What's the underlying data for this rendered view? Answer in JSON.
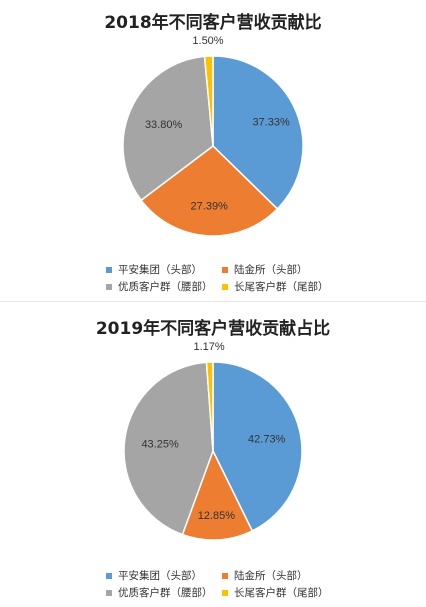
{
  "chart_data": [
    {
      "type": "pie",
      "title": "2018年不同客户营收贡献比",
      "categories": [
        "平安集团（头部）",
        "陆金所（头部）",
        "优质客户群（腰部）",
        "长尾客户群（尾部）"
      ],
      "values": [
        37.33,
        27.39,
        33.8,
        1.5
      ],
      "labels": [
        "37.33%",
        "27.39%",
        "33.80%",
        "1.50%"
      ],
      "colors": [
        "#5b9bd5",
        "#ed7d31",
        "#a5a5a5",
        "#ffc000"
      ],
      "legend_position": "bottom"
    },
    {
      "type": "pie",
      "title": "2019年不同客户营收贡献占比",
      "categories": [
        "平安集团（头部）",
        "陆金所（头部）",
        "优质客户群（腰部）",
        "长尾客户群（尾部）"
      ],
      "values": [
        42.73,
        12.85,
        43.25,
        1.17
      ],
      "labels": [
        "42.73%",
        "12.85%",
        "43.25%",
        "1.17%"
      ],
      "colors": [
        "#5b9bd5",
        "#ed7d31",
        "#a5a5a5",
        "#ffc000"
      ],
      "legend_position": "bottom"
    }
  ]
}
